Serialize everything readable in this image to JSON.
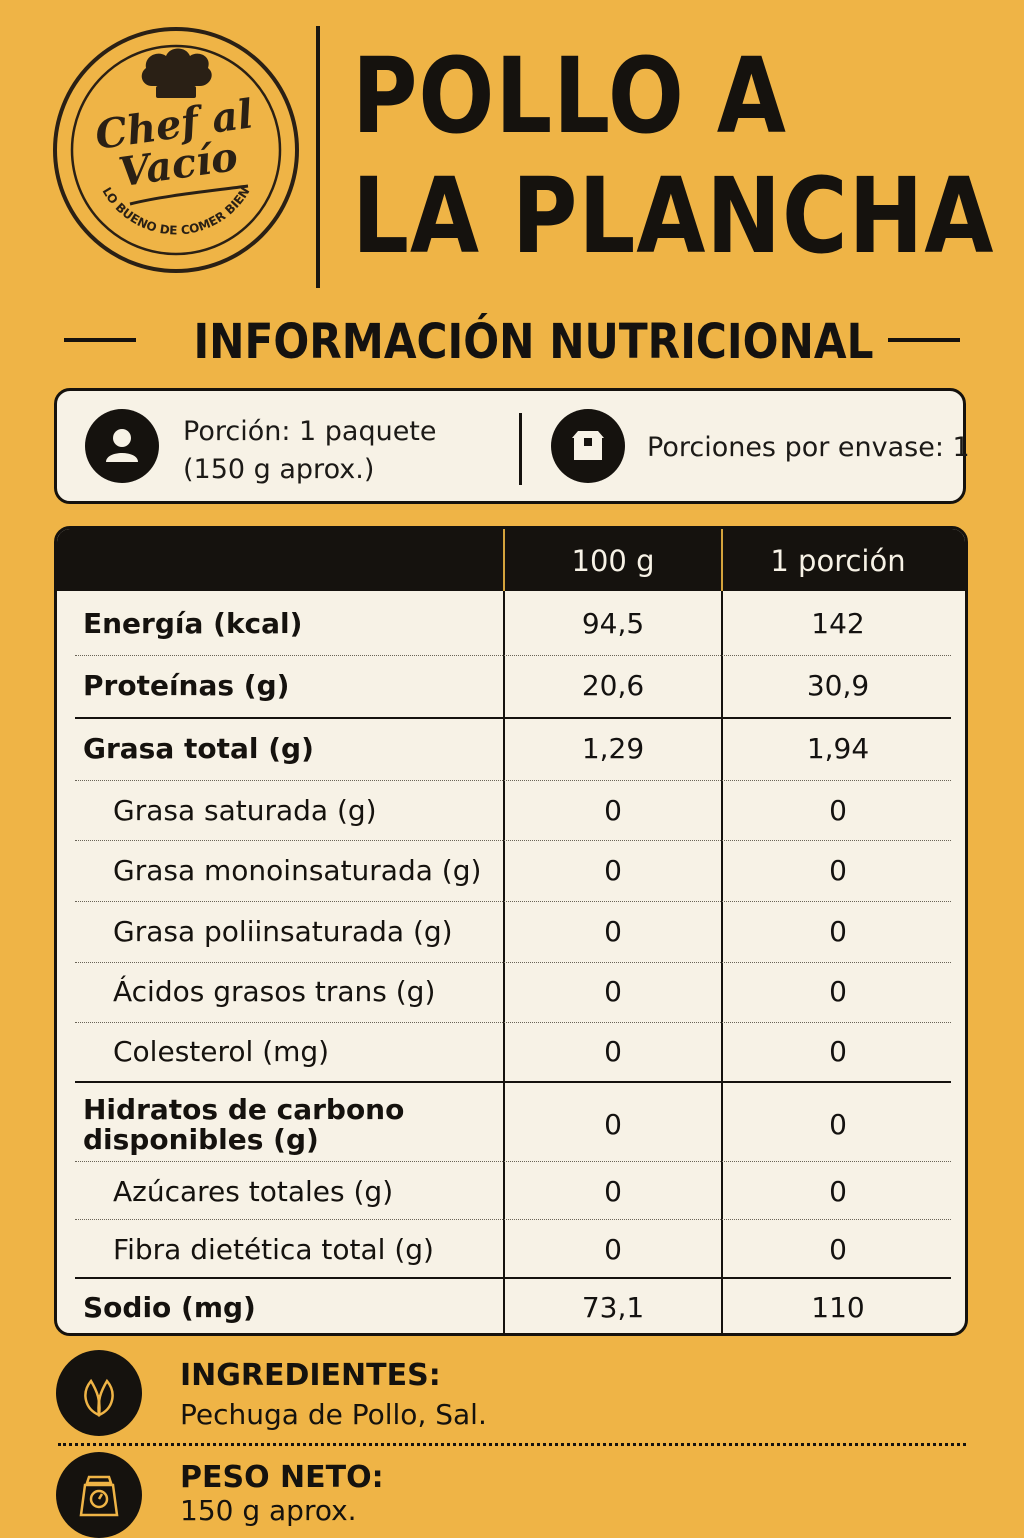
{
  "brand": {
    "name_line1": "Chef al",
    "name_line2": "Vacío",
    "tagline": "LO BUENO DE COMER BIEN"
  },
  "title": {
    "line1": "POLLO A",
    "line2": "LA PLANCHA"
  },
  "section_heading": "INFORMACIÓN NUTRICIONAL",
  "serving": {
    "icon": "person-icon",
    "line1": "Porción: 1 paquete",
    "line2": "(150 g aprox.)",
    "per_pack_icon": "box-icon",
    "per_pack": "Porciones por envase: 1"
  },
  "table": {
    "columns": [
      "100 g",
      "1 porción"
    ],
    "rows": [
      {
        "name": "Energía (kcal)",
        "v1": "94,5",
        "v2": "142"
      },
      {
        "name": "Proteínas (g)",
        "v1": "20,6",
        "v2": "30,9"
      },
      {
        "name": "Grasa total (g)",
        "v1": "1,29",
        "v2": "1,94"
      },
      {
        "name": "Grasa saturada (g)",
        "v1": "0",
        "v2": "0"
      },
      {
        "name": "Grasa monoinsaturada (g)",
        "v1": "0",
        "v2": "0"
      },
      {
        "name": "Grasa poliinsaturada (g)",
        "v1": "0",
        "v2": "0"
      },
      {
        "name": "Ácidos grasos trans (g)",
        "v1": "0",
        "v2": "0"
      },
      {
        "name": "Colesterol (mg)",
        "v1": "0",
        "v2": "0"
      },
      {
        "name_line1": "Hidratos de carbono",
        "name_line2": "disponibles (g)",
        "v1": "0",
        "v2": "0"
      },
      {
        "name": "Azúcares totales (g)",
        "v1": "0",
        "v2": "0"
      },
      {
        "name": "Fibra dietética total (g)",
        "v1": "0",
        "v2": "0"
      },
      {
        "name": "Sodio (mg)",
        "v1": "73,1",
        "v2": "110"
      }
    ]
  },
  "ingredients": {
    "icon": "leaf-icon",
    "title": "INGREDIENTES:",
    "text": "Pechuga de Pollo, Sal."
  },
  "net_weight": {
    "icon": "scale-icon",
    "title": "PESO NETO:",
    "text": "150 g aprox."
  },
  "colors": {
    "background": "#efb446",
    "ink": "#15120e",
    "panel": "#f7f2e6"
  }
}
